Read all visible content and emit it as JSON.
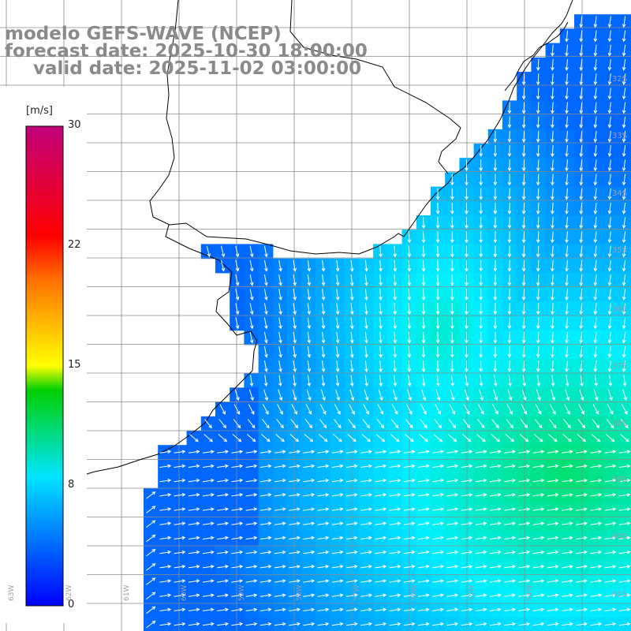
{
  "title": {
    "line1": "modelo GEFS-WAVE (NCEP)",
    "line2": "forecast date: 2025-10-30 18:00:00",
    "line3": "valid date: 2025-11-02 03:00:00"
  },
  "colorbar": {
    "unit": "[m/s]",
    "min": 0,
    "max": 30,
    "ticks": [
      30,
      22,
      15,
      8,
      0
    ],
    "colors": [
      "#0000ff",
      "#00e5ff",
      "#00d000",
      "#ffff00",
      "#ff6a00",
      "#ff0000",
      "#c0007a"
    ]
  },
  "lat_labels": [
    "32S",
    "33S",
    "34S",
    "35S",
    "36S",
    "37S",
    "38S",
    "39S",
    "40S",
    "41S"
  ],
  "lon_labels": [
    "63W",
    "62W",
    "61W",
    "60W",
    "59W",
    "58W",
    "57W",
    "56W",
    "55W",
    "54W"
  ],
  "colors": {
    "land": "#ffffff",
    "coast": "#000000",
    "grid": "#8c8c8c",
    "arrows": "#ffffff"
  }
}
